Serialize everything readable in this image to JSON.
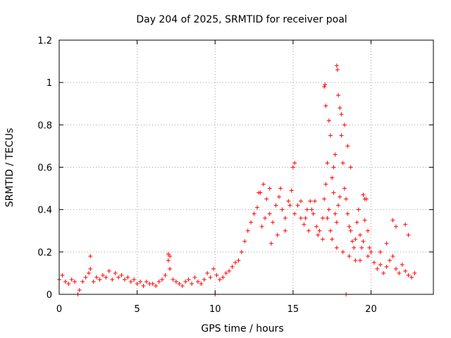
{
  "chart_data": {
    "type": "scatter",
    "title": "Day 204 of 2025, SRMTID for receiver poal",
    "xlabel": "GPS time / hours",
    "ylabel": "SRMTID / TECUs",
    "xlim": [
      0,
      24.0
    ],
    "ylim": [
      0,
      1.2
    ],
    "xticks": [
      0,
      5,
      10,
      15,
      20
    ],
    "xtick_labels": [
      "0",
      "5",
      "10",
      "15",
      "20"
    ],
    "yticks": [
      0,
      0.2,
      0.4,
      0.6,
      0.8,
      1.0,
      1.2
    ],
    "ytick_labels": [
      "0",
      "0.2",
      "0.4",
      "0.6",
      "0.8",
      "1",
      "1.2"
    ],
    "grid": true,
    "marker": "+",
    "color": "#ff0000",
    "series": [
      {
        "name": "SRMTID",
        "x": [
          0.0,
          0.2,
          0.4,
          0.6,
          0.8,
          1.0,
          1.3,
          1.5,
          1.7,
          1.9,
          2.0,
          2.2,
          2.4,
          2.6,
          2.8,
          3.0,
          3.2,
          3.4,
          3.6,
          3.8,
          4.0,
          4.2,
          4.4,
          4.6,
          4.8,
          5.0,
          5.2,
          5.4,
          5.6,
          5.8,
          6.0,
          6.2,
          6.4,
          6.6,
          6.8,
          7.0,
          7.1,
          7.3,
          7.5,
          7.7,
          7.9,
          8.1,
          8.3,
          8.5,
          8.7,
          8.9,
          9.1,
          9.3,
          9.5,
          9.7,
          9.9,
          10.1,
          10.3,
          10.5,
          10.7,
          10.9,
          11.1,
          11.3,
          11.5,
          11.7,
          11.9,
          12.1,
          12.3,
          12.5,
          12.7,
          12.9,
          13.1,
          13.3,
          13.5,
          13.7,
          13.9,
          14.1,
          14.3,
          14.5,
          14.7,
          14.9,
          15.0,
          15.1,
          15.3,
          15.5,
          15.7,
          15.9,
          16.1,
          16.3,
          16.5,
          16.7,
          16.9,
          17.0,
          17.1,
          17.2,
          17.3,
          17.4,
          17.5,
          17.6,
          17.7,
          17.8,
          17.9,
          18.0,
          18.1,
          18.2,
          18.3,
          18.4,
          18.5,
          18.6,
          18.7,
          18.8,
          18.9,
          19.0,
          19.1,
          19.2,
          19.3,
          19.4,
          19.5,
          19.6,
          19.7,
          19.8,
          19.9,
          20.0,
          20.2,
          20.4,
          20.6,
          20.8,
          21.0,
          21.2,
          21.4,
          21.6,
          21.8,
          22.0,
          22.2,
          22.4,
          22.6,
          22.8,
          1.2,
          10.0,
          18.4,
          7.0,
          7.1,
          2.0,
          12.8,
          13.5,
          14.2,
          15.1,
          16.4,
          17.0,
          17.05,
          17.1,
          17.3,
          17.4,
          17.6,
          17.7,
          17.8,
          17.85,
          17.9,
          18.0,
          18.1,
          18.3,
          18.5,
          18.7,
          19.5,
          19.6,
          21.4,
          21.6,
          22.2,
          22.4,
          13.0,
          13.2,
          14.0,
          14.5,
          15.5,
          16.0,
          16.6,
          16.9,
          17.2,
          17.5,
          17.8,
          18.2,
          18.6,
          19.0,
          19.3,
          19.8,
          13.6,
          14.8,
          15.8,
          16.2,
          20.6,
          21.0
        ],
        "y": [
          0.07,
          0.09,
          0.06,
          0.05,
          0.07,
          0.06,
          0.02,
          0.06,
          0.08,
          0.1,
          0.12,
          0.06,
          0.08,
          0.07,
          0.09,
          0.08,
          0.11,
          0.07,
          0.1,
          0.08,
          0.09,
          0.07,
          0.08,
          0.06,
          0.07,
          0.05,
          0.06,
          0.04,
          0.06,
          0.05,
          0.05,
          0.04,
          0.06,
          0.07,
          0.09,
          0.16,
          0.12,
          0.07,
          0.06,
          0.05,
          0.04,
          0.06,
          0.07,
          0.05,
          0.08,
          0.06,
          0.05,
          0.07,
          0.1,
          0.08,
          0.12,
          0.09,
          0.07,
          0.08,
          0.1,
          0.11,
          0.13,
          0.15,
          0.16,
          0.2,
          0.25,
          0.3,
          0.34,
          0.38,
          0.41,
          0.48,
          0.52,
          0.45,
          0.38,
          0.34,
          0.42,
          0.46,
          0.4,
          0.36,
          0.44,
          0.49,
          0.6,
          0.38,
          0.42,
          0.36,
          0.33,
          0.4,
          0.44,
          0.38,
          0.32,
          0.3,
          0.36,
          0.45,
          0.52,
          0.62,
          0.4,
          0.3,
          0.55,
          0.48,
          0.38,
          0.34,
          0.42,
          0.46,
          0.75,
          0.62,
          0.5,
          0.45,
          0.38,
          0.32,
          0.3,
          0.25,
          0.22,
          0.26,
          0.34,
          0.4,
          0.28,
          0.22,
          0.25,
          0.35,
          0.45,
          0.3,
          0.22,
          0.2,
          0.15,
          0.12,
          0.14,
          0.1,
          0.13,
          0.16,
          0.18,
          0.12,
          0.1,
          0.14,
          0.11,
          0.09,
          0.08,
          0.1,
          0.0,
          0.0,
          0.0,
          0.19,
          0.18,
          0.18,
          0.48,
          0.5,
          0.5,
          0.62,
          0.44,
          0.98,
          0.99,
          0.89,
          0.82,
          0.75,
          0.6,
          0.66,
          1.08,
          1.06,
          0.94,
          0.88,
          0.85,
          0.8,
          0.7,
          0.6,
          0.47,
          0.45,
          0.35,
          0.32,
          0.33,
          0.28,
          0.32,
          0.36,
          0.28,
          0.3,
          0.44,
          0.3,
          0.28,
          0.26,
          0.36,
          0.26,
          0.22,
          0.2,
          0.18,
          0.16,
          0.16,
          0.18,
          0.24,
          0.42,
          0.36,
          0.4,
          0.2,
          0.24
        ]
      }
    ]
  }
}
